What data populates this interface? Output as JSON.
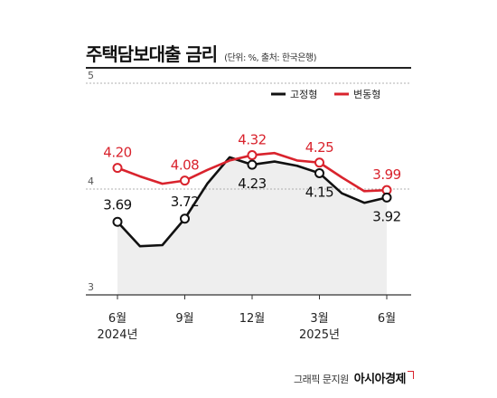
{
  "chart_data": {
    "type": "line",
    "title": "주택담보대출 금리",
    "subtitle": "(단위: %, 출처: 한국은행)",
    "x": [
      0,
      1,
      2,
      3,
      4,
      5,
      6,
      7,
      8,
      9,
      10,
      11,
      12
    ],
    "x_ticks": [
      {
        "x": 0,
        "label": "6월",
        "sub": "2024년"
      },
      {
        "x": 3,
        "label": "9월",
        "sub": ""
      },
      {
        "x": 6,
        "label": "12월",
        "sub": ""
      },
      {
        "x": 9,
        "label": "3월",
        "sub": "2025년"
      },
      {
        "x": 12,
        "label": "6월",
        "sub": ""
      }
    ],
    "yticks": [
      3,
      4,
      5
    ],
    "ylim": [
      3,
      5
    ],
    "grid": true,
    "legend": "top-right",
    "series": [
      {
        "name": "고정형",
        "color": "#111111",
        "values": [
          3.69,
          3.46,
          3.47,
          3.72,
          4.05,
          4.3,
          4.23,
          4.26,
          4.22,
          4.15,
          3.96,
          3.87,
          3.92
        ],
        "labeled": [
          {
            "x": 0,
            "label": "3.69"
          },
          {
            "x": 3,
            "label": "3.72"
          },
          {
            "x": 6,
            "label": "4.23"
          },
          {
            "x": 9,
            "label": "4.15"
          },
          {
            "x": 12,
            "label": "3.92"
          }
        ]
      },
      {
        "name": "변동형",
        "color": "#d9232d",
        "values": [
          4.2,
          4.12,
          4.05,
          4.08,
          4.18,
          4.27,
          4.32,
          4.34,
          4.27,
          4.25,
          4.11,
          3.98,
          3.99
        ],
        "labeled": [
          {
            "x": 0,
            "label": "4.20"
          },
          {
            "x": 3,
            "label": "4.08"
          },
          {
            "x": 6,
            "label": "4.32"
          },
          {
            "x": 9,
            "label": "4.25"
          },
          {
            "x": 12,
            "label": "3.99"
          }
        ]
      }
    ]
  },
  "footer": {
    "credit": "그래픽 문지원",
    "brand": "아시아경제"
  }
}
